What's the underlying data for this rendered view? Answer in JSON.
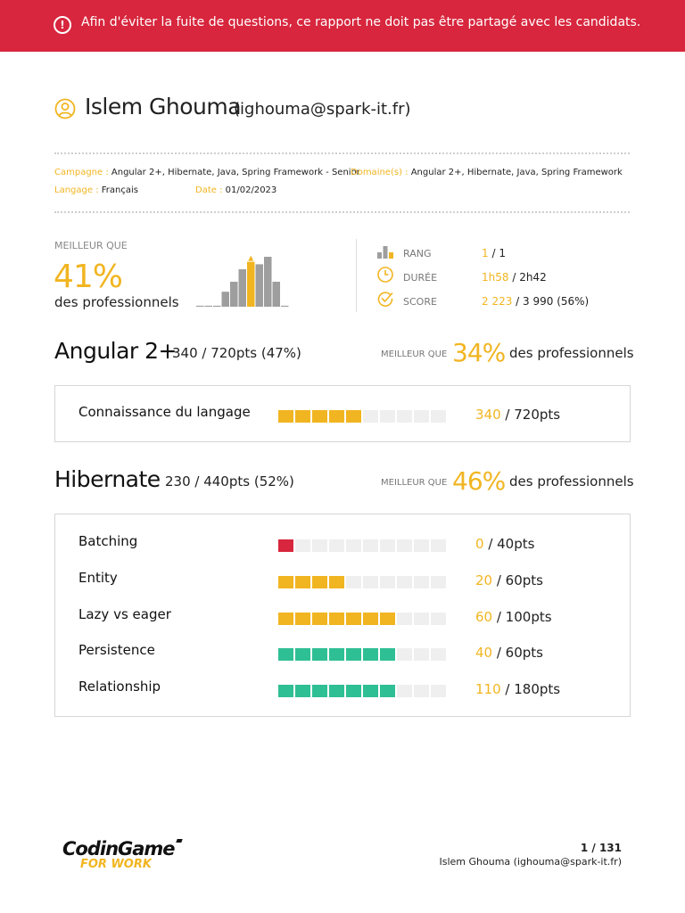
{
  "banner": {
    "text": "Afin d'éviter la fuite de questions, ce rapport ne doit pas être partagé avec les candidats.",
    "icon": "alert-circle-icon",
    "color": "#d7263d"
  },
  "candidate": {
    "name": "Islem Ghouma",
    "email": "(ighouma@spark-it.fr)",
    "icon": "user-circle-icon"
  },
  "meta": {
    "campagne_label": "Campagne :",
    "campagne_value": "Angular 2+, Hibernate, Java, Spring Framework - Senior",
    "domaines_label": "Domaine(s) :",
    "domaines_value": "Angular 2+, Hibernate, Java, Spring Framework",
    "langage_label": "Langage :",
    "langage_value": "Français",
    "date_label": "Date :",
    "date_value": "01/02/2023"
  },
  "summary": {
    "better_label": "MEILLEUR QUE",
    "better_pct": "41%",
    "better_sub": "des professionnels",
    "histogram": [
      0.02,
      0.02,
      0.02,
      0.3,
      0.5,
      0.75,
      0.9,
      0.85,
      1.0,
      0.5,
      0.02
    ],
    "histogram_highlight_index": 6,
    "stats": [
      {
        "icon": "rank-bars-icon",
        "label": "RANG",
        "value_highlight": "1",
        "value_rest": " / 1"
      },
      {
        "icon": "clock-icon",
        "label": "DURÉE",
        "value_highlight": "1h58",
        "value_rest": " / 2h42"
      },
      {
        "icon": "check-circle-icon",
        "label": "SCORE",
        "value_highlight": "2 223",
        "value_rest": " / 3 990  (56%)"
      }
    ]
  },
  "sections": [
    {
      "title": "Angular 2+",
      "score": "340 / 720pts (47%)",
      "better_label": "MEILLEUR QUE",
      "better_pct": "34%",
      "better_sub": "des professionnels",
      "rows": [
        {
          "name": "Connaissance du langage",
          "filled": 5,
          "total": 10,
          "color": "#f1b521",
          "pts_highlight": "340",
          "pts_rest": " / 720pts"
        }
      ]
    },
    {
      "title": "Hibernate",
      "score": "230 / 440pts (52%)",
      "better_label": "MEILLEUR QUE",
      "better_pct": "46%",
      "better_sub": "des professionnels",
      "rows": [
        {
          "name": "Batching",
          "filled": 1,
          "total": 10,
          "color": "#d7263d",
          "pts_highlight": "0",
          "pts_rest": " / 40pts"
        },
        {
          "name": "Entity",
          "filled": 4,
          "total": 10,
          "color": "#f1b521",
          "pts_highlight": "20",
          "pts_rest": " / 60pts"
        },
        {
          "name": "Lazy vs eager",
          "filled": 7,
          "total": 10,
          "color": "#f1b521",
          "pts_highlight": "60",
          "pts_rest": " / 100pts"
        },
        {
          "name": "Persistence",
          "filled": 7,
          "total": 10,
          "color": "#2fbf94",
          "pts_highlight": "40",
          "pts_rest": " / 60pts"
        },
        {
          "name": "Relationship",
          "filled": 7,
          "total": 10,
          "color": "#2fbf94",
          "pts_highlight": "110",
          "pts_rest": " / 180pts"
        }
      ]
    }
  ],
  "footer": {
    "logo_line1": "CodinGame",
    "logo_line2": "FOR WORK",
    "page": "1 / 131",
    "candidate": "Islem Ghouma (ighouma@spark-it.fr)"
  },
  "colors": {
    "accent": "#f1b521",
    "bar_empty": "#efefef",
    "histogram_grey": "#9e9e9e"
  }
}
